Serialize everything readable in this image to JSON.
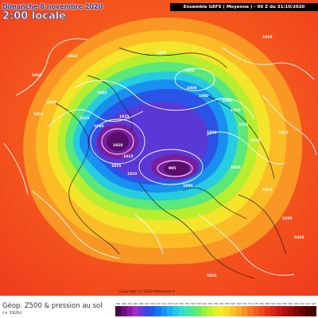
{
  "header": {
    "date": "Dimanche 8 novembre 2020",
    "time": "2:00 locale",
    "run": "Ensemble GEFS  ( Moyenne )  - 00 Z du 31/10/2020"
  },
  "footer": {
    "title": "Géop. Z500 & pression au sol",
    "subtitle": "(+ 192h)",
    "copyright": "Copyright (c) 2020 Meteociel.fr"
  },
  "legend": {
    "ticks": [
      "482",
      "486",
      "490",
      "494",
      "498",
      "502",
      "506",
      "510",
      "514",
      "518",
      "522",
      "526",
      "530",
      "534",
      "538",
      "542",
      "546",
      "550",
      "554",
      "558",
      "562",
      "566",
      "570",
      "574",
      "578",
      "582",
      "586",
      "590",
      "594",
      "598",
      "602",
      "606",
      "610",
      "614",
      "618"
    ],
    "colors": [
      "#4a0a4a",
      "#6a0f7a",
      "#8a1aa8",
      "#a030c8",
      "#6a38d8",
      "#3c46e6",
      "#1e5bf0",
      "#1478f0",
      "#1494f0",
      "#18aef0",
      "#20c8e6",
      "#30dcd0",
      "#40e6b0",
      "#50e888",
      "#70ec60",
      "#98f040",
      "#bef030",
      "#e0f028",
      "#f6ea28",
      "#fad828",
      "#fcc026",
      "#fca824",
      "#fa8e22",
      "#f67620",
      "#f25e1e",
      "#ee481c",
      "#e6341a",
      "#da2418",
      "#c81616",
      "#b01010",
      "#980c0c",
      "#800808",
      "#680606",
      "#520404",
      "#3e0202"
    ]
  },
  "isobars": [
    {
      "label": "1010"
    },
    {
      "label": "1015"
    },
    {
      "label": "1005"
    },
    {
      "label": "1020"
    },
    {
      "label": "1025"
    },
    {
      "label": "1000"
    },
    {
      "label": "1010"
    },
    {
      "label": "1015"
    },
    {
      "label": "1015"
    },
    {
      "label": "1020"
    },
    {
      "label": "1025"
    },
    {
      "label": "1010"
    },
    {
      "label": "1015"
    },
    {
      "label": "1000"
    },
    {
      "label": "1005"
    },
    {
      "label": "1010"
    },
    {
      "label": "1015"
    },
    {
      "label": "1020"
    },
    {
      "label": "1025"
    },
    {
      "label": "1015"
    },
    {
      "label": "1010"
    },
    {
      "label": "1015"
    },
    {
      "label": "1010"
    },
    {
      "label": "995"
    },
    {
      "label": "1000"
    },
    {
      "label": "1010"
    },
    {
      "label": "1015"
    },
    {
      "label": "1020"
    },
    {
      "label": "1025"
    },
    {
      "label": "1015"
    }
  ]
}
